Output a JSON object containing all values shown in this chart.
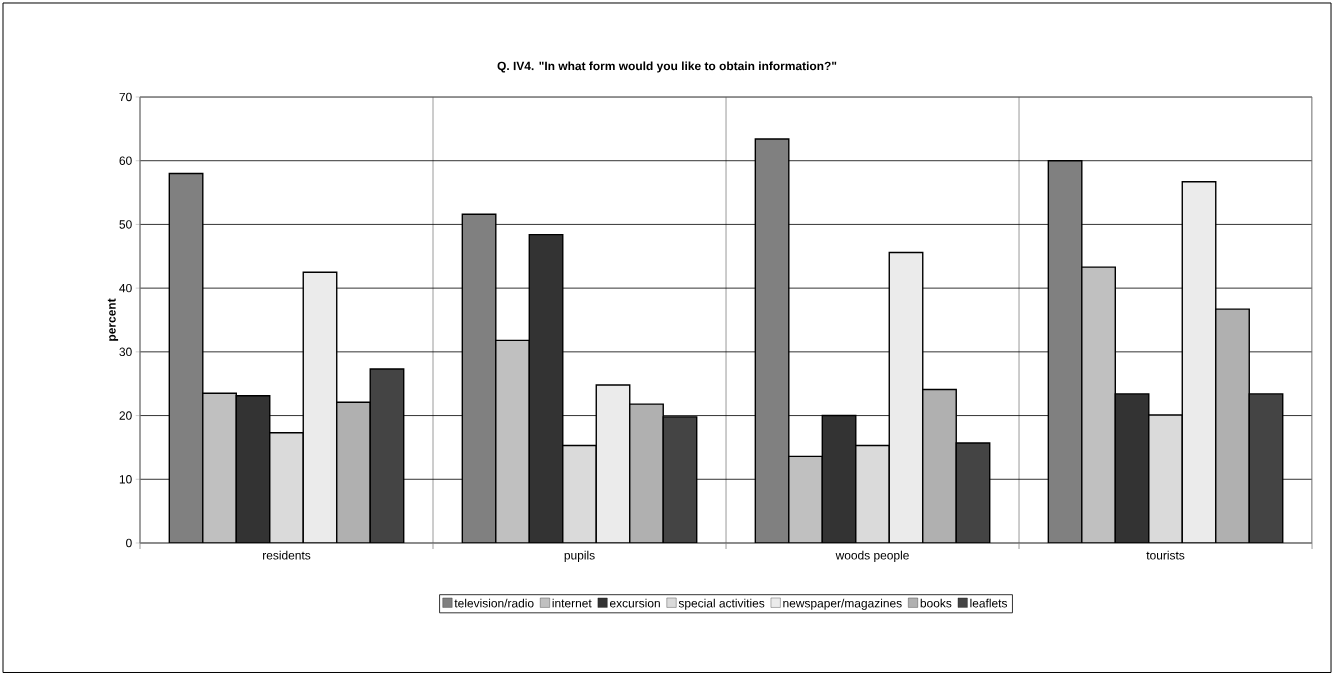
{
  "chart_data": {
    "type": "bar",
    "title": "Q. IV4. \"In what form would you like to obtain information?\"",
    "ylabel": "percent",
    "categories": [
      "residents",
      "pupils",
      "woods people",
      "tourists"
    ],
    "series": [
      {
        "name": "television/radio",
        "color": "#808080",
        "values": [
          58.0,
          51.6,
          63.4,
          60.0
        ]
      },
      {
        "name": "internet",
        "color": "#c0c0c0",
        "values": [
          23.5,
          31.8,
          13.6,
          43.3
        ]
      },
      {
        "name": "excursion",
        "color": "#333333",
        "values": [
          23.1,
          48.4,
          20.0,
          23.4
        ]
      },
      {
        "name": "special activities",
        "color": "#dadada",
        "values": [
          17.3,
          15.3,
          15.3,
          20.1
        ]
      },
      {
        "name": "newspaper/magazines",
        "color": "#ebebeb",
        "values": [
          42.5,
          24.8,
          45.6,
          56.7
        ]
      },
      {
        "name": "books",
        "color": "#b0b0b0",
        "values": [
          22.1,
          21.8,
          24.1,
          36.7
        ]
      },
      {
        "name": "leaflets",
        "color": "#444444",
        "values": [
          27.3,
          19.8,
          15.7,
          23.4
        ]
      }
    ],
    "ylim": [
      0,
      70
    ],
    "yticks": [
      0,
      10,
      20,
      30,
      40,
      50,
      60,
      70
    ],
    "grid": true,
    "legend": "bottom"
  }
}
